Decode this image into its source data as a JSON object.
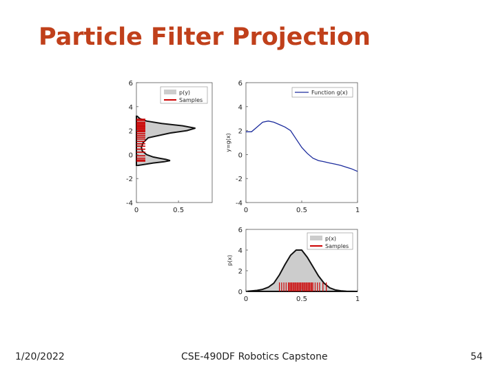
{
  "slide": {
    "title": "Particle Filter Projection",
    "footer_date": "1/20/2022",
    "footer_course": "CSE-490DF Robotics Capstone",
    "footer_page": "54"
  },
  "colors": {
    "title": "#c0401b",
    "fill": "#cccccc",
    "samples": "#cc0000",
    "line": "#1a2a9c"
  },
  "chart_data": [
    {
      "type": "area",
      "orientation": "horizontal",
      "x_ticks": [
        "0",
        "0.5"
      ],
      "y_ticks": [
        "6",
        "4",
        "2",
        "0",
        "-2",
        "-4"
      ],
      "xlim": [
        0,
        0.9
      ],
      "ylim": [
        -4,
        6
      ],
      "legend": {
        "placement": "top-right",
        "entries": [
          "p(y)",
          "Samples"
        ]
      },
      "series": [
        {
          "name": "p(y)",
          "y": [
            -0.9,
            -0.7,
            -0.6,
            -0.5,
            -0.4,
            -0.3,
            -0.2,
            0,
            0.3,
            0.6,
            1.0,
            1.4,
            1.8,
            2.0,
            2.2,
            2.4,
            2.6,
            2.8,
            3.0,
            3.2
          ],
          "values": [
            0.02,
            0.2,
            0.33,
            0.4,
            0.35,
            0.27,
            0.2,
            0.12,
            0.07,
            0.06,
            0.08,
            0.14,
            0.4,
            0.6,
            0.7,
            0.55,
            0.3,
            0.12,
            0.04,
            0.01
          ]
        }
      ],
      "samples": [
        2.95,
        2.85,
        2.7,
        2.6,
        2.5,
        2.4,
        2.3,
        2.2,
        2.1,
        2.0,
        1.9,
        1.75,
        1.6,
        1.45,
        1.3,
        1.1,
        0.9,
        0.7,
        0.45,
        0.2,
        -0.1,
        -0.3,
        -0.45,
        -0.55
      ]
    },
    {
      "type": "line",
      "ylabel": "y=g(x)",
      "x_ticks": [
        "0",
        "0.5",
        "1"
      ],
      "y_ticks": [
        "6",
        "4",
        "2",
        "0",
        "-2",
        "-4"
      ],
      "xlim": [
        0,
        1
      ],
      "ylim": [
        -4,
        6
      ],
      "legend": {
        "placement": "top-right",
        "entries": [
          "Function g(x)"
        ]
      },
      "series": [
        {
          "name": "Function g(x)",
          "x": [
            0,
            0.05,
            0.1,
            0.15,
            0.2,
            0.25,
            0.3,
            0.35,
            0.4,
            0.45,
            0.5,
            0.55,
            0.6,
            0.65,
            0.7,
            0.75,
            0.8,
            0.85,
            0.9,
            0.95,
            1
          ],
          "y": [
            1.9,
            1.9,
            2.3,
            2.7,
            2.8,
            2.7,
            2.5,
            2.3,
            2.0,
            1.3,
            0.6,
            0.1,
            -0.3,
            -0.5,
            -0.6,
            -0.7,
            -0.8,
            -0.9,
            -1.05,
            -1.2,
            -1.4
          ]
        }
      ]
    },
    {
      "type": "area",
      "ylabel": "p(x)",
      "x_ticks": [
        "0",
        "0.5",
        "1"
      ],
      "y_ticks": [
        "6",
        "4",
        "2",
        "0"
      ],
      "xlim": [
        0,
        1
      ],
      "ylim": [
        0,
        6
      ],
      "legend": {
        "placement": "top-right",
        "entries": [
          "p(x)",
          "Samples"
        ]
      },
      "series": [
        {
          "name": "p(x)",
          "x": [
            0,
            0.05,
            0.1,
            0.15,
            0.2,
            0.25,
            0.3,
            0.35,
            0.4,
            0.45,
            0.5,
            0.55,
            0.6,
            0.65,
            0.7,
            0.75,
            0.8,
            0.85,
            0.9,
            0.95,
            1
          ],
          "y": [
            0,
            0.05,
            0.1,
            0.2,
            0.4,
            0.8,
            1.6,
            2.6,
            3.5,
            4.0,
            4.0,
            3.3,
            2.4,
            1.5,
            0.8,
            0.35,
            0.15,
            0.06,
            0.02,
            0.01,
            0
          ]
        }
      ],
      "samples": [
        0.3,
        0.32,
        0.34,
        0.36,
        0.38,
        0.39,
        0.4,
        0.41,
        0.42,
        0.43,
        0.44,
        0.45,
        0.46,
        0.47,
        0.48,
        0.49,
        0.5,
        0.51,
        0.52,
        0.53,
        0.54,
        0.55,
        0.56,
        0.57,
        0.58,
        0.59,
        0.6,
        0.62,
        0.64,
        0.66,
        0.69,
        0.72
      ]
    }
  ]
}
